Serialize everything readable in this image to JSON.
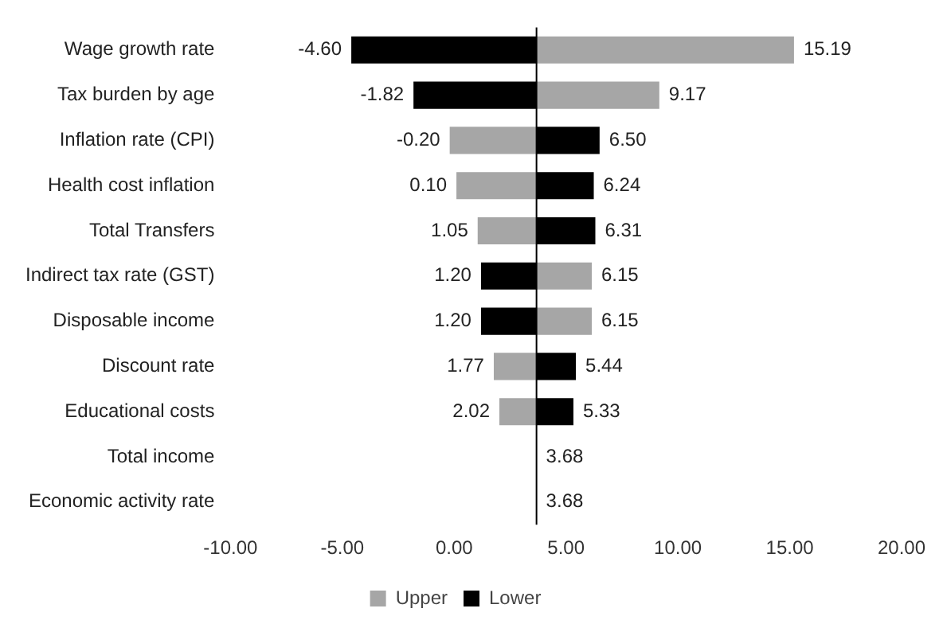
{
  "chart_data": {
    "type": "bar",
    "orientation": "horizontal",
    "categories": [
      "Wage growth rate",
      "Tax burden by age",
      "Inflation rate (CPI)",
      "Health cost inflation",
      "Total Transfers",
      "Indirect tax rate (GST)",
      "Disposable income",
      "Discount rate",
      "Educational costs",
      "Total income",
      "Economic activity rate"
    ],
    "series": [
      {
        "name": "Upper",
        "color": "#a6a6a6",
        "base": [
          3.68,
          3.68,
          3.68,
          3.68,
          3.68,
          3.68,
          3.68,
          3.68,
          3.68,
          null,
          null
        ],
        "values": [
          11.51,
          5.49,
          -3.88,
          -3.58,
          -2.63,
          2.47,
          2.47,
          -1.91,
          -1.66,
          null,
          null
        ],
        "value_labels": [
          "15.19",
          "9.17",
          "-0.20",
          "0.10",
          "1.05",
          "6.15",
          "6.15",
          "1.77",
          "2.02",
          null,
          null
        ]
      },
      {
        "name": "Lower",
        "color": "#000000",
        "base": [
          3.68,
          3.68,
          3.68,
          3.68,
          3.68,
          3.68,
          3.68,
          3.68,
          3.68,
          null,
          null
        ],
        "values": [
          -8.28,
          -5.5,
          2.82,
          2.56,
          2.63,
          -2.48,
          -2.48,
          1.76,
          1.65,
          null,
          null
        ],
        "value_labels": [
          "-4.60",
          "-1.82",
          "6.50",
          "6.24",
          "6.31",
          "1.20",
          "1.20",
          "5.44",
          "5.33",
          null,
          null
        ]
      }
    ],
    "annotations": [
      {
        "text": "3.68",
        "x": 3.68,
        "y": "Total income"
      },
      {
        "text": "3.68",
        "x": 3.68,
        "y": "Economic activity rate"
      }
    ],
    "xlim": [
      -10,
      20
    ],
    "xticks": [
      {
        "value": -10,
        "label": "-10.00"
      },
      {
        "value": -5,
        "label": "-5.00"
      },
      {
        "value": 0,
        "label": "0.00"
      },
      {
        "value": 5,
        "label": "5.00"
      },
      {
        "value": 10,
        "label": "10.00"
      },
      {
        "value": 15,
        "label": "15.00"
      },
      {
        "value": 20,
        "label": "20.00"
      }
    ],
    "ref_lines": [
      {
        "axis": "x",
        "value": 3.68,
        "color": "#000000"
      }
    ],
    "grid": false,
    "legend": "bottom"
  }
}
